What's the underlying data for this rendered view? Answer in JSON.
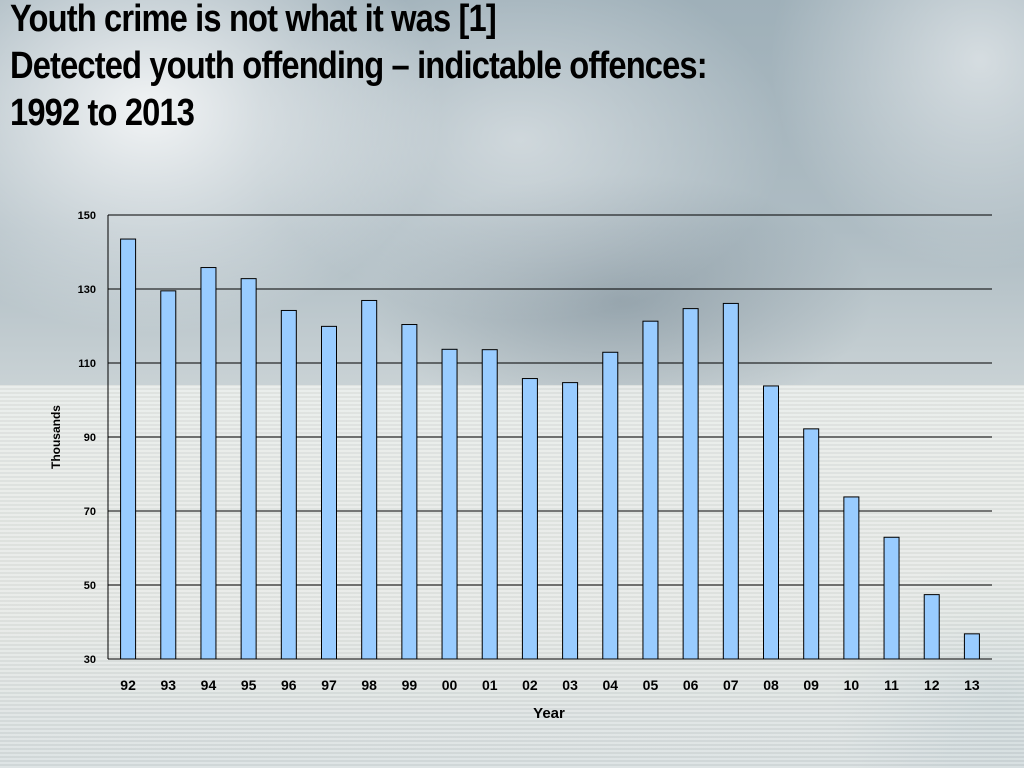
{
  "title_lines": [
    "Youth crime is not what it was [1]",
    "Detected youth offending – indictable offences:",
    "1992 to 2013"
  ],
  "chart_data": {
    "type": "bar",
    "categories": [
      "92",
      "93",
      "94",
      "95",
      "96",
      "97",
      "98",
      "99",
      "00",
      "01",
      "02",
      "03",
      "04",
      "05",
      "06",
      "07",
      "08",
      "09",
      "10",
      "11",
      "12",
      "13"
    ],
    "values": [
      143.5,
      129.5,
      135.8,
      132.8,
      124.2,
      119.9,
      126.9,
      120.4,
      113.7,
      113.6,
      105.8,
      104.7,
      112.9,
      121.3,
      124.7,
      126.1,
      103.8,
      92.2,
      73.8,
      62.9,
      47.4,
      36.8
    ],
    "xlabel": "Year",
    "ylabel": "Thousands",
    "ylim": [
      30,
      150
    ],
    "yticks": [
      30,
      50,
      70,
      90,
      110,
      130,
      150
    ],
    "grid": true,
    "bar_color": "#99ccff",
    "bar_edge_color": "#000000"
  }
}
